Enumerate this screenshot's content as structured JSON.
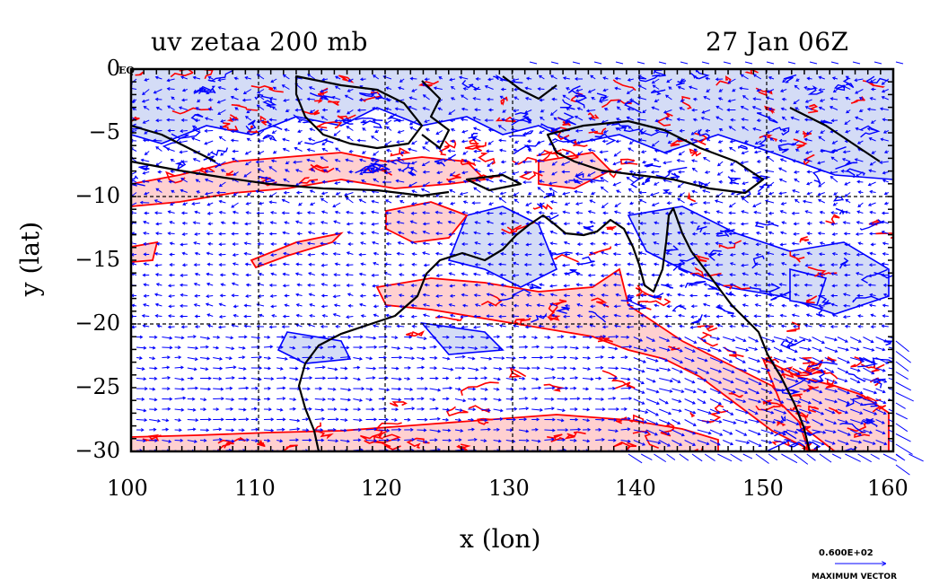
{
  "header": {
    "left_title": "uv zetaa 200 mb",
    "right_title": "27 Jan 06Z"
  },
  "axes": {
    "xlabel": "x (lon)",
    "ylabel": "y (lat)",
    "x_ticks": [
      "100",
      "110",
      "120",
      "130",
      "140",
      "150",
      "160"
    ],
    "y_ticks": [
      "0",
      "−5",
      "−10",
      "−15",
      "−20",
      "−25",
      "−30"
    ],
    "x_range": [
      100,
      160
    ],
    "y_range": [
      -30,
      0
    ],
    "eq_label": "EQ"
  },
  "legend": {
    "value": "0.600E+02",
    "label": "MAXIMUM VECTOR"
  },
  "colors": {
    "positive": "#ff0000",
    "positive_fill": "#ffd0d0",
    "negative": "#0000ff",
    "negative_fill": "#d4dcf6",
    "vector": "#0000ff",
    "coast": "#000000"
  }
}
